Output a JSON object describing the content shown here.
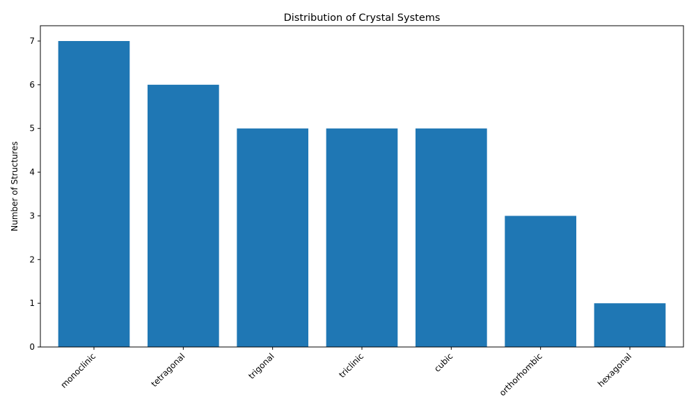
{
  "chart_data": {
    "type": "bar",
    "title": "Distribution of Crystal Systems",
    "xlabel": "",
    "ylabel": "Number of Structures",
    "categories": [
      "monoclinic",
      "tetragonal",
      "trigonal",
      "triclinic",
      "cubic",
      "orthorhombic",
      "hexagonal"
    ],
    "values": [
      7,
      6,
      5,
      5,
      5,
      3,
      1
    ],
    "ylim": [
      0,
      7.35
    ],
    "yticks": [
      0,
      1,
      2,
      3,
      4,
      5,
      6,
      7
    ],
    "grid": false,
    "bar_color": "#1f77b4"
  }
}
